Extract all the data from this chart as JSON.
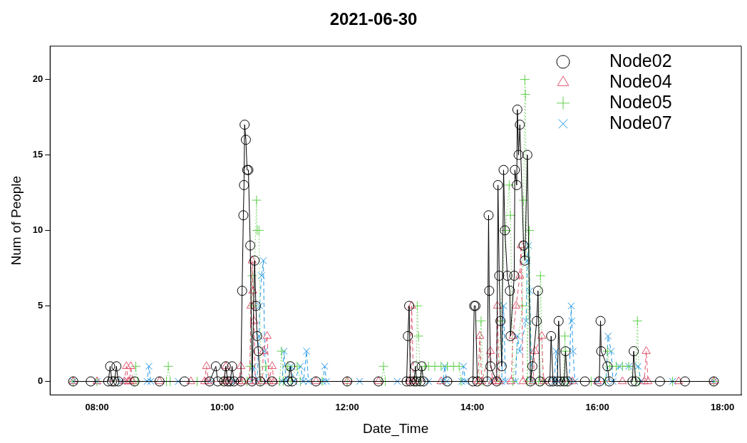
{
  "chart_data": {
    "type": "line",
    "title": "2021-06-30",
    "xlabel": "Date_Time",
    "ylabel": "Num of People",
    "xlim": [
      7.25,
      18.3
    ],
    "xticks": [
      {
        "value": 8,
        "label": "08:00"
      },
      {
        "value": 10,
        "label": "10:00"
      },
      {
        "value": 12,
        "label": "12:00"
      },
      {
        "value": 14,
        "label": "14:00"
      },
      {
        "value": 16,
        "label": "16:00"
      },
      {
        "value": 18,
        "label": "18:00"
      }
    ],
    "ylim": [
      -0.9,
      22.2
    ],
    "yticks": [
      0,
      5,
      10,
      15,
      20
    ],
    "grid": false,
    "legend": "top right",
    "series": [
      {
        "name": "Node02",
        "color": "#000000",
        "marker": "circle",
        "line_style": "solid",
        "x": [
          7.62,
          7.9,
          8.18,
          8.21,
          8.24,
          8.28,
          8.31,
          8.34,
          8.6,
          9.0,
          9.4,
          9.8,
          9.9,
          9.93,
          10.03,
          10.06,
          10.09,
          10.13,
          10.16,
          10.19,
          10.3,
          10.32,
          10.34,
          10.35,
          10.36,
          10.38,
          10.4,
          10.42,
          10.45,
          10.48,
          10.52,
          10.54,
          10.56,
          10.58,
          10.61,
          10.8,
          11.06,
          11.09,
          11.12,
          11.5,
          12.0,
          12.5,
          12.95,
          12.97,
          12.99,
          13.01,
          13.07,
          13.09,
          13.11,
          13.17,
          13.19,
          13.22,
          13.6,
          14.01,
          14.03,
          14.05,
          14.08,
          14.24,
          14.26,
          14.27,
          14.29,
          14.39,
          14.41,
          14.43,
          14.45,
          14.47,
          14.5,
          14.52,
          14.56,
          14.6,
          14.61,
          14.67,
          14.68,
          14.71,
          14.72,
          14.74,
          14.76,
          14.82,
          14.84,
          14.88,
          14.93,
          14.96,
          15.03,
          15.05,
          15.08,
          15.24,
          15.26,
          15.29,
          15.36,
          15.38,
          15.41,
          15.47,
          15.49,
          15.52,
          15.8,
          16.03,
          16.05,
          16.06,
          16.16,
          16.19,
          16.56,
          16.58,
          16.61,
          17.0,
          17.4,
          17.86
        ],
        "values": [
          0,
          0,
          0,
          1,
          0,
          0,
          1,
          0,
          0,
          0,
          0,
          0,
          1,
          0,
          0,
          1,
          0,
          0,
          1,
          0,
          0,
          6,
          11,
          13,
          17,
          16,
          14,
          14,
          9,
          0,
          8,
          5,
          3,
          2,
          0,
          0,
          0,
          1,
          0,
          0,
          0,
          0,
          0,
          3,
          5,
          0,
          0,
          1,
          0,
          0,
          1,
          0,
          0,
          0,
          5,
          5,
          0,
          0,
          11,
          6,
          1,
          0,
          13,
          7,
          4,
          1,
          14,
          10,
          7,
          6,
          3,
          7,
          14,
          13,
          18,
          15,
          17,
          9,
          8,
          15,
          0,
          1,
          4,
          6,
          0,
          0,
          3,
          0,
          0,
          4,
          0,
          0,
          2,
          0,
          0,
          0,
          4,
          2,
          1,
          0,
          0,
          2,
          0,
          0,
          0,
          0
        ]
      },
      {
        "name": "Node04",
        "color": "#df536b",
        "marker": "triangle",
        "line_style": "dashed",
        "x": [
          7.62,
          8.0,
          8.44,
          8.47,
          8.5,
          8.52,
          8.54,
          8.57,
          9.0,
          9.5,
          9.72,
          9.75,
          9.78,
          10.03,
          10.06,
          10.09,
          10.27,
          10.3,
          10.33,
          10.44,
          10.46,
          10.48,
          10.49,
          10.51,
          10.53,
          10.64,
          10.66,
          10.72,
          10.75,
          10.8,
          10.83,
          11.5,
          12.0,
          12.5,
          13.0,
          13.03,
          13.06,
          13.5,
          14.09,
          14.12,
          14.15,
          14.29,
          14.32,
          14.38,
          14.4,
          14.43,
          14.62,
          14.65,
          14.7,
          14.76,
          14.78,
          14.81,
          14.97,
          15.0,
          15.11,
          15.14,
          15.6,
          16.0,
          16.4,
          16.75,
          16.78,
          16.81,
          17.3,
          17.86
        ],
        "values": [
          0,
          0,
          0,
          1,
          0,
          0,
          1,
          0,
          0,
          0,
          0,
          1,
          0,
          0,
          1,
          0,
          0,
          1,
          0,
          0,
          5,
          8,
          6,
          4,
          0,
          0,
          2,
          3,
          0,
          1,
          0,
          0,
          0,
          0,
          0,
          5,
          0,
          0,
          0,
          3,
          0,
          2,
          0,
          0,
          5,
          0,
          0,
          3,
          5,
          7,
          9,
          0,
          0,
          2,
          3,
          0,
          0,
          0,
          0,
          0,
          2,
          0,
          0,
          0
        ]
      },
      {
        "name": "Node05",
        "color": "#61d04f",
        "marker": "cross",
        "line_style": "dotted",
        "x": [
          7.62,
          8.0,
          8.59,
          8.62,
          8.65,
          9.11,
          9.14,
          9.17,
          9.6,
          10.0,
          10.4,
          10.45,
          10.48,
          10.5,
          10.55,
          10.56,
          10.59,
          10.62,
          10.7,
          10.75,
          10.92,
          10.95,
          10.98,
          11.05,
          11.1,
          11.2,
          11.25,
          11.6,
          12.0,
          12.55,
          12.58,
          12.61,
          13.1,
          13.12,
          13.14,
          13.17,
          13.24,
          13.3,
          13.4,
          13.5,
          13.6,
          13.7,
          13.79,
          13.82,
          14.11,
          14.14,
          14.17,
          14.43,
          14.45,
          14.53,
          14.59,
          14.61,
          14.65,
          14.8,
          14.82,
          14.84,
          14.85,
          14.88,
          14.91,
          14.94,
          15.06,
          15.09,
          15.12,
          15.45,
          15.48,
          15.49,
          15.52,
          15.9,
          16.13,
          16.16,
          16.2,
          16.3,
          16.4,
          16.5,
          16.61,
          16.64,
          16.67,
          17.2,
          17.86
        ],
        "values": [
          0,
          0,
          0,
          1,
          0,
          0,
          1,
          0,
          0,
          0,
          0,
          1,
          7,
          5,
          12,
          10,
          10,
          0,
          1,
          0,
          0,
          2,
          0,
          1,
          0,
          1,
          0,
          0,
          0,
          0,
          1,
          0,
          0,
          5,
          3,
          0,
          1,
          1,
          1,
          1,
          1,
          1,
          1,
          0,
          0,
          4,
          0,
          0,
          4,
          10,
          13,
          11,
          0,
          5,
          12,
          20,
          19,
          0,
          10,
          0,
          0,
          7,
          0,
          0,
          3,
          2,
          0,
          0,
          0,
          2,
          1,
          1,
          1,
          1,
          0,
          4,
          0,
          0,
          0
        ]
      },
      {
        "name": "Node07",
        "color": "#2297e6",
        "marker": "x",
        "line_style": "dashed",
        "x": [
          7.62,
          8.0,
          8.4,
          8.8,
          8.83,
          8.86,
          9.3,
          9.8,
          10.2,
          10.47,
          10.5,
          10.56,
          10.59,
          10.6,
          10.63,
          10.66,
          10.68,
          10.71,
          10.96,
          10.99,
          11.02,
          11.1,
          11.15,
          11.25,
          11.3,
          11.35,
          11.38,
          11.61,
          11.64,
          11.67,
          12.2,
          12.8,
          13.3,
          13.53,
          13.56,
          13.59,
          13.83,
          13.86,
          13.89,
          14.3,
          14.47,
          14.5,
          14.53,
          14.69,
          14.72,
          14.76,
          14.86,
          14.88,
          14.9,
          14.92,
          14.95,
          15.31,
          15.34,
          15.37,
          15.55,
          15.58,
          15.59,
          15.61,
          15.64,
          16.0,
          16.14,
          16.17,
          16.22,
          16.25,
          16.35,
          16.5,
          16.65,
          16.7,
          17.2,
          17.86
        ],
        "values": [
          0,
          0,
          0,
          0,
          1,
          0,
          0,
          0,
          0,
          0,
          1,
          0,
          3,
          5,
          7,
          8,
          2,
          0,
          0,
          2,
          0,
          1,
          0,
          1,
          0,
          2,
          0,
          0,
          1,
          0,
          0,
          0,
          0,
          0,
          1,
          0,
          0,
          1,
          0,
          0,
          0,
          5,
          0,
          0,
          3,
          2,
          4,
          8,
          9,
          6,
          0,
          0,
          2,
          0,
          0,
          5,
          4,
          2,
          0,
          0,
          0,
          3,
          2,
          0,
          1,
          1,
          1,
          0,
          0,
          0
        ]
      }
    ]
  }
}
